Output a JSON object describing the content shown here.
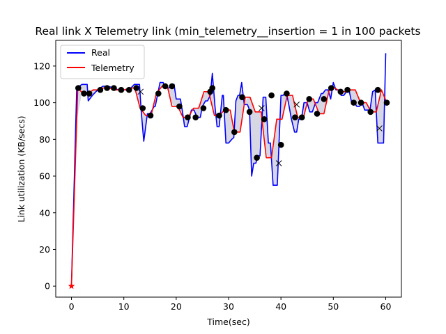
{
  "chart_data": {
    "type": "line",
    "title": "Real link X Telemetry link (min_telemetry__insertion = 1 in 100 packets",
    "xlabel": "Time(sec)",
    "ylabel": "Link utilization (KB/secs)",
    "xlim": [
      -3,
      63
    ],
    "ylim": [
      -6,
      134
    ],
    "xticks": [
      0,
      10,
      20,
      30,
      40,
      50,
      60
    ],
    "yticks": [
      0,
      20,
      40,
      60,
      80,
      100,
      120
    ],
    "grid": false,
    "legend_position": "top-left",
    "colors": {
      "real": "#0000ff",
      "telemetry": "#ff0000",
      "marker": "#000000",
      "fill": "#d3d3e0"
    },
    "series": [
      {
        "name": "Real",
        "x": [
          0,
          1,
          2,
          3,
          3.2,
          4,
          5,
          6,
          7,
          8,
          9,
          10,
          11,
          12,
          13,
          13.3,
          13.8,
          14.5,
          15,
          15.8,
          16,
          16.9,
          17.5,
          18,
          18.6,
          19,
          19.6,
          20,
          20.8,
          21.2,
          21.6,
          22.1,
          22.9,
          23.4,
          24,
          24.6,
          25,
          25.6,
          26,
          26.5,
          26.9,
          27.4,
          27.8,
          28.2,
          28.8,
          29,
          29.5,
          30,
          30.6,
          31,
          31.4,
          31.8,
          32.1,
          32.5,
          33,
          33.6,
          34,
          34.4,
          34.8,
          35.2,
          35.6,
          36,
          36.6,
          37.1,
          37.6,
          38,
          38.5,
          39,
          39.3,
          40,
          40.4,
          41,
          41.5,
          42,
          42.6,
          43,
          43.4,
          43.9,
          44.4,
          45,
          45.5,
          46,
          46.6,
          47,
          47.7,
          48,
          48.5,
          49,
          49.5,
          50,
          50.5,
          51,
          51.5,
          52,
          52.5,
          53,
          53.5,
          54,
          54.5,
          55,
          55.5,
          56,
          56.5,
          57,
          57.5,
          58,
          58.5,
          59,
          59.6,
          60
        ],
        "values": [
          0,
          108,
          110,
          110,
          101,
          104,
          107,
          109,
          109,
          108,
          107,
          107,
          107,
          110,
          110,
          96,
          79,
          94,
          94,
          98,
          98,
          111,
          111,
          108,
          108,
          110,
          110,
          102,
          102,
          95,
          87,
          87,
          96,
          96,
          92,
          92,
          98,
          101,
          101,
          104,
          116,
          98,
          87,
          87,
          104,
          104,
          78,
          78,
          80,
          81,
          101,
          104,
          104,
          111,
          99,
          99,
          96,
          60,
          67,
          67,
          71,
          71,
          103,
          103,
          78,
          78,
          55,
          55,
          55,
          104,
          104,
          106,
          99,
          91,
          84,
          84,
          91,
          91,
          100,
          100,
          95,
          95,
          100,
          100,
          105,
          105,
          107,
          107,
          102,
          111,
          107,
          107,
          104,
          104,
          106,
          107,
          100,
          100,
          98,
          98,
          100,
          96,
          96,
          96,
          106,
          107,
          78,
          78,
          78,
          127
        ],
        "markers": [],
        "data_labels": []
      },
      {
        "name": "Telemetry",
        "x": [
          0,
          1.2,
          2.2,
          3.2,
          4.1,
          5.2,
          6.1,
          7.2,
          8.1,
          9.1,
          10.1,
          11.1,
          12.1,
          13.1,
          14.2,
          15.2,
          16.2,
          17.3,
          18.3,
          19.2,
          20.3,
          21.3,
          22.3,
          23.3,
          24.3,
          25.3,
          26.2,
          27.3,
          28.2,
          29.2,
          30.3,
          31.1,
          32.2,
          33.2,
          34.1,
          35.1,
          36.2,
          37.2,
          38.2,
          39.2,
          40.2,
          41.2,
          42.2,
          43.2,
          44.3,
          45.2,
          46.2,
          47.3,
          48.2,
          49.3,
          50.3,
          51.3,
          52.2,
          53.2,
          54.2,
          55.2,
          56.3,
          57.2,
          58.2,
          59.2,
          60.2
        ],
        "values": [
          0,
          108,
          105,
          105,
          107,
          107,
          108,
          108,
          107,
          107,
          107,
          108,
          108,
          97,
          93,
          93,
          105,
          109,
          109,
          98,
          98,
          92,
          92,
          97,
          97,
          106,
          106,
          93,
          93,
          96,
          96,
          84,
          84,
          103,
          103,
          95,
          95,
          70,
          70,
          91,
          91,
          104,
          104,
          92,
          92,
          102,
          102,
          94,
          94,
          108,
          108,
          106,
          106,
          107,
          107,
          100,
          100,
          95,
          95,
          107,
          100
        ],
        "markers": [
          {
            "x": 0,
            "y": 0,
            "shape": "star"
          }
        ],
        "data_labels": []
      },
      {
        "name": "",
        "type": "scatter",
        "x": [
          1.3,
          2.4,
          3.4,
          5.5,
          6.8,
          8.1,
          9.5,
          11,
          12.4,
          13.6,
          15.1,
          16.6,
          17.9,
          19.2,
          20.6,
          22.2,
          23.7,
          25.2,
          26.5,
          26.9,
          28.2,
          29.5,
          31.1,
          32.6,
          34,
          35.4,
          36.8,
          38.2,
          40,
          41.1,
          42.7,
          44,
          45.4,
          46.9,
          48.2,
          49.6,
          51.4,
          52.7,
          53.9,
          55.3,
          57.1,
          58.5,
          60.2
        ],
        "values": [
          108,
          105,
          105,
          107,
          108,
          108,
          107,
          107,
          108,
          97,
          93,
          105,
          109,
          109,
          98,
          92,
          92,
          97,
          106,
          108,
          93,
          96,
          84,
          103,
          95,
          70,
          91,
          104,
          77,
          105,
          92,
          92,
          102,
          94,
          102,
          108,
          106,
          107,
          100,
          100,
          95,
          107,
          100
        ],
        "markers": [],
        "data_labels": []
      }
    ],
    "cross_markers": {
      "x": [
        13.2,
        36.3,
        39.6,
        43,
        58.8
      ],
      "values": [
        106,
        97,
        67,
        99,
        86
      ]
    }
  },
  "legend": {
    "items": [
      "Real",
      "Telemetry"
    ]
  }
}
